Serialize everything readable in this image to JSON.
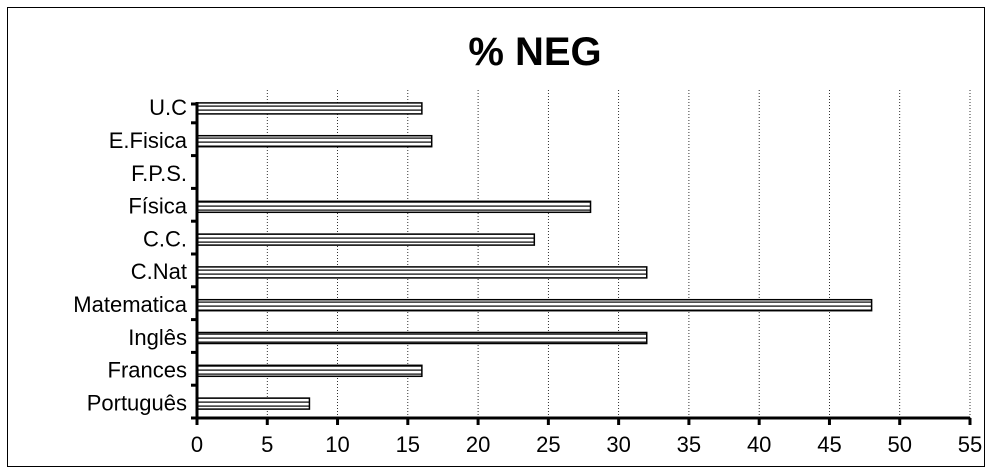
{
  "chart_data": {
    "type": "bar",
    "orientation": "horizontal",
    "title": "% NEG",
    "xlabel": "",
    "ylabel": "",
    "categories": [
      "Português",
      "Frances",
      "Inglês",
      "Matematica",
      "C.Nat",
      "C.C.",
      "Física",
      "F.P.S.",
      "E.Fisica",
      "U.C"
    ],
    "values": [
      8,
      16,
      32,
      48,
      32,
      24,
      28,
      0,
      16.7,
      16
    ],
    "xlim": [
      0,
      55
    ],
    "xticks": [
      0,
      5,
      10,
      15,
      20,
      25,
      30,
      35,
      40,
      45,
      50,
      55
    ],
    "grid": "vertical-dotted",
    "legend": "none",
    "colors": {
      "bar_fill": "#ffffff",
      "bar_stripe": "#000000",
      "axis": "#000000"
    }
  }
}
